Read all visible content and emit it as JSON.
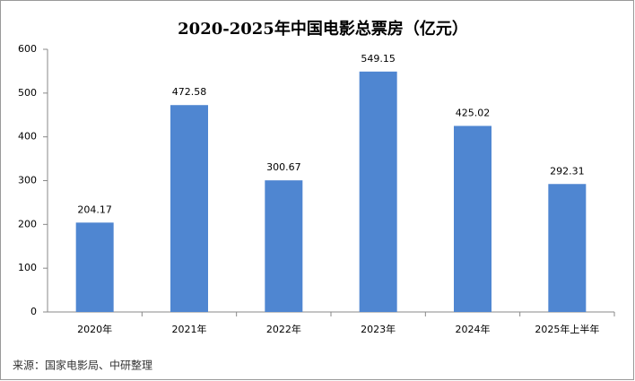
{
  "chart_data": {
    "type": "bar",
    "title": "2020-2025年中国电影总票房（亿元）",
    "categories": [
      "2020年",
      "2021年",
      "2022年",
      "2023年",
      "2024年",
      "2025年上半年"
    ],
    "values": [
      204.17,
      472.58,
      300.67,
      549.15,
      425.02,
      292.31
    ],
    "color": "#4f86d1",
    "ylim": [
      0,
      600
    ],
    "yticks": [
      0,
      100,
      200,
      300,
      400,
      500,
      600
    ],
    "grid": false,
    "source": "来源：国家电影局、中研整理"
  }
}
